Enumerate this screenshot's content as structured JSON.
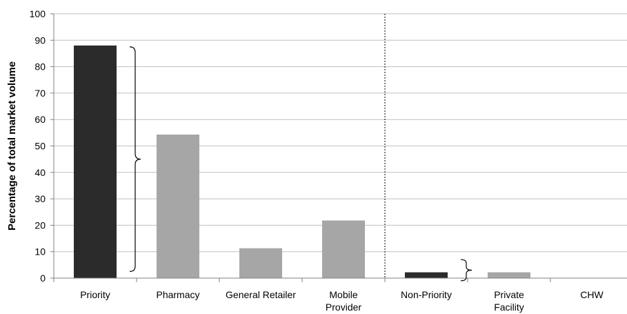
{
  "chart_data": {
    "type": "bar",
    "title": "",
    "xlabel": "",
    "ylabel": "Percentage of total market volume",
    "ylim": [
      0,
      100
    ],
    "yticks": [
      0,
      10,
      20,
      30,
      40,
      50,
      60,
      70,
      80,
      90,
      100
    ],
    "grid": true,
    "legend": "none",
    "categories": [
      [
        "Priority"
      ],
      [
        "Pharmacy"
      ],
      [
        "General Retailer"
      ],
      [
        "Mobile",
        "Provider"
      ],
      [
        "Non-Priority"
      ],
      [
        "Private",
        "Facility"
      ],
      [
        "CHW"
      ]
    ],
    "values": [
      88,
      54.3,
      11.3,
      21.8,
      2.2,
      2.2,
      0
    ],
    "bar_colors": [
      "#2b2b2b",
      "#a6a6a6",
      "#a6a6a6",
      "#a6a6a6",
      "#2b2b2b",
      "#a6a6a6",
      "#a6a6a6"
    ],
    "divider_after_category": 4,
    "annotations": [
      {
        "type": "curly-brace",
        "category": 1,
        "y_range": [
          2.5,
          87.5
        ]
      },
      {
        "type": "curly-brace",
        "category": 5,
        "y_range": [
          -1,
          7
        ]
      }
    ]
  },
  "colors": {
    "grid": "#bfbfbf",
    "axis": "#808080",
    "divider": "#000000",
    "brace": "#000000"
  }
}
